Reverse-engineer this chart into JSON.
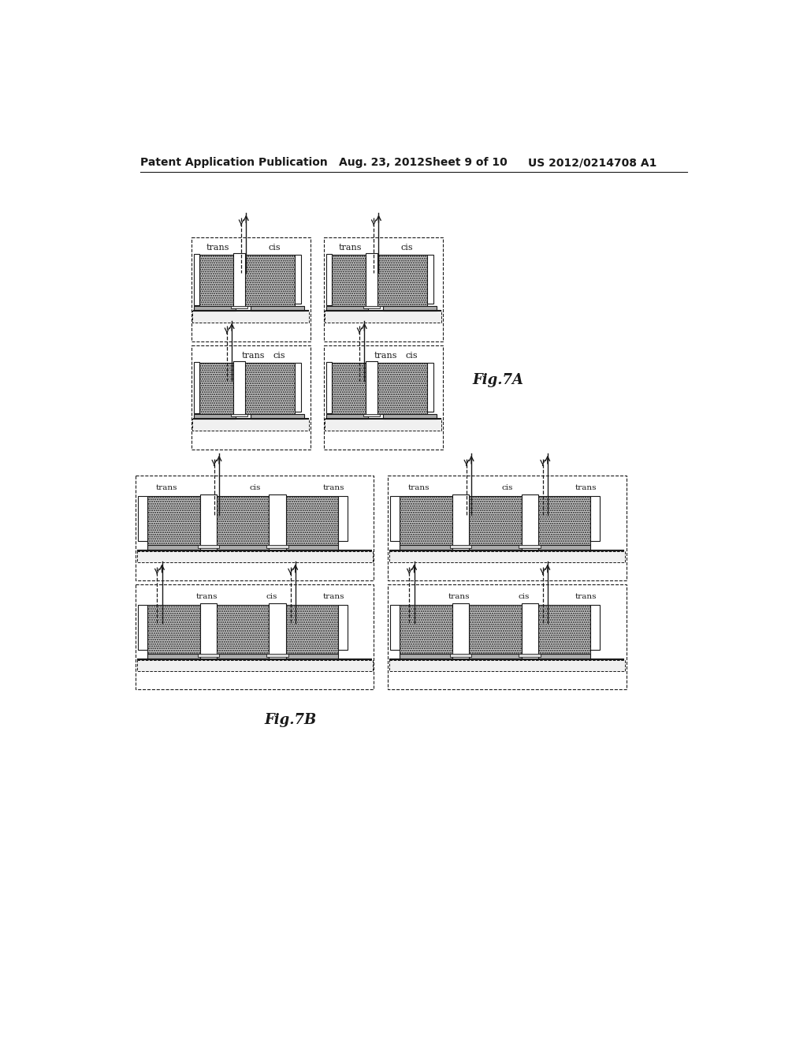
{
  "bg_color": "#ffffff",
  "header_text": "Patent Application Publication",
  "header_date": "Aug. 23, 2012",
  "header_sheet": "Sheet 9 of 10",
  "header_patent": "US 2012/0214708 A1",
  "fig7a_label": "Fig.7A",
  "fig7b_label": "Fig.7B",
  "line_color": "#1a1a1a",
  "white_color": "#ffffff",
  "hatch_gray": "#bbbbbb",
  "speckle_gray": "#c0c0c0"
}
